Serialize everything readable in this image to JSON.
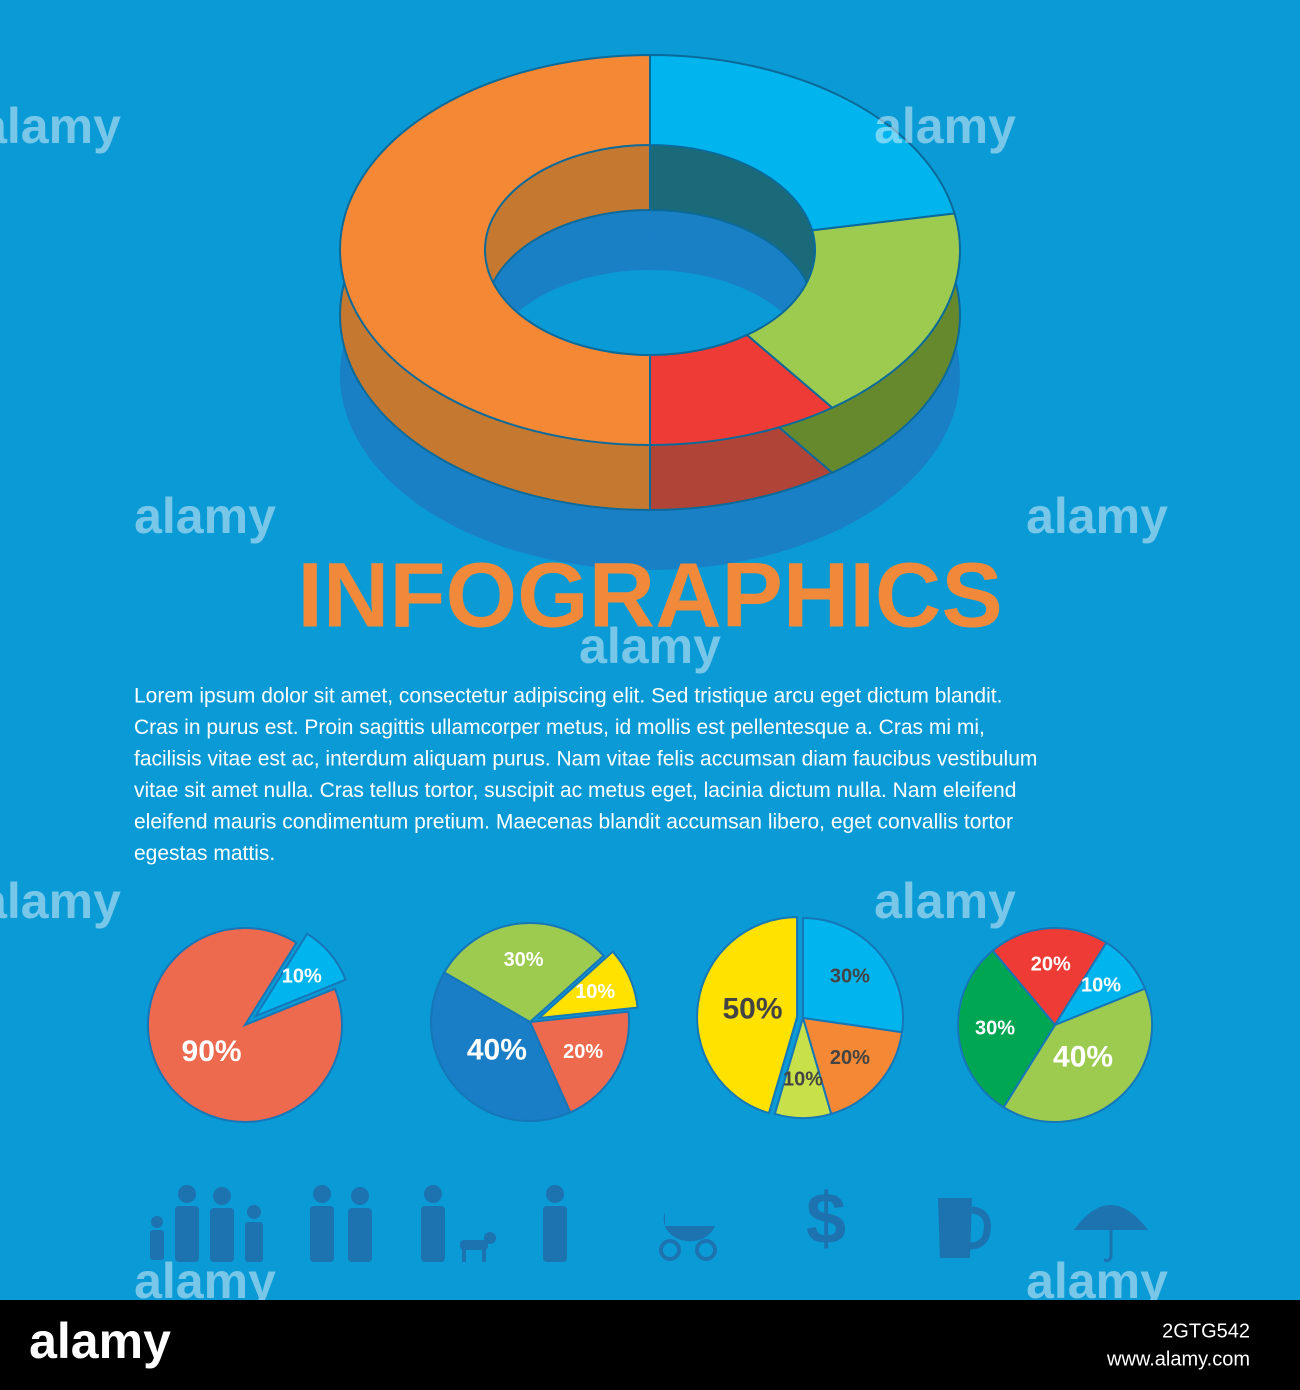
{
  "title": "INFOGRAPHICS",
  "body": [
    "Lorem ipsum dolor sit amet, consectetur adipiscing elit. Sed tristique arcu eget dictum blandit.",
    "Cras in purus est. Proin sagittis ullamcorper metus, id mollis est pellentesque a. Cras mi mi,",
    "facilisis vitae est ac, interdum aliquam purus. Nam vitae felis accumsan diam faucibus vestibulum",
    "vitae sit amet nulla. Cras tellus tortor, suscipit ac metus eget, lacinia dictum nulla. Nam eleifend",
    "eleifend mauris condimentum pretium. Maecenas blandit accumsan libero, eget convallis tortor",
    "egestas mattis."
  ],
  "watermark": "alamy",
  "footer": {
    "logo": "alamy",
    "image_id": "2GTG542",
    "url": "www.alamy.com"
  },
  "chart_data": [
    {
      "type": "donut",
      "values": [
        22,
        18,
        10,
        50
      ],
      "colors": [
        "#00b5ee",
        "#9ccb50",
        "#ef3b36",
        "#f48834"
      ],
      "side_colors": [
        "#1a6a7a",
        "#66892e",
        "#b04437",
        "#c57830"
      ]
    },
    {
      "type": "pie",
      "values": [
        90,
        10
      ],
      "value_labels": [
        "90%",
        "10%"
      ],
      "colors": [
        "#ee6a4f",
        "#00b5ee"
      ],
      "label_colors": [
        "#ffffff",
        "#ffffff"
      ]
    },
    {
      "type": "pie",
      "values": [
        30,
        10,
        20,
        40
      ],
      "value_labels": [
        "30%",
        "10%",
        "20%",
        "40%"
      ],
      "colors": [
        "#9ccb50",
        "#ffe200",
        "#ee6a4f",
        "#1a7ec6"
      ],
      "label_colors": [
        "#ffffff",
        "#ffffff",
        "#ffffff",
        "#ffffff"
      ]
    },
    {
      "type": "pie",
      "values": [
        30,
        20,
        10,
        50
      ],
      "value_labels": [
        "30%",
        "20%",
        "10%",
        "50%"
      ],
      "colors": [
        "#00b5ee",
        "#f48834",
        "#c8e04a",
        "#ffe200"
      ],
      "label_colors": [
        "#444444",
        "#444444",
        "#444444",
        "#444444"
      ]
    },
    {
      "type": "pie",
      "values": [
        20,
        10,
        40,
        30
      ],
      "value_labels": [
        "20%",
        "10%",
        "40%",
        "30%"
      ],
      "colors": [
        "#ef3b36",
        "#00b5ee",
        "#9ccb50",
        "#00a651"
      ],
      "label_colors": [
        "#ffffff",
        "#ffffff",
        "#ffffff",
        "#ffffff"
      ]
    }
  ]
}
